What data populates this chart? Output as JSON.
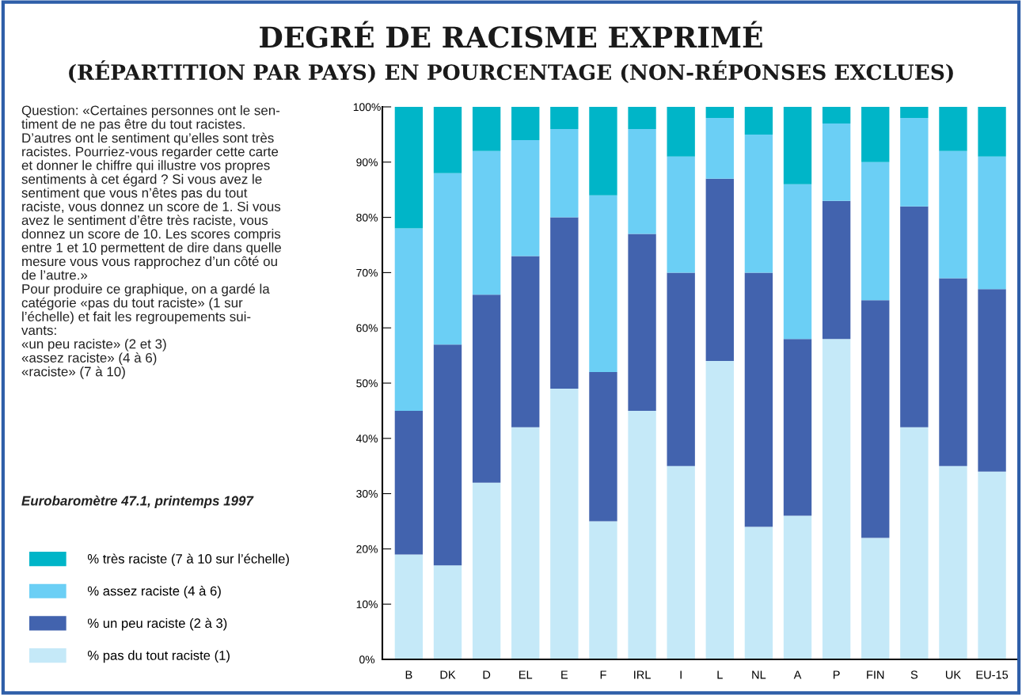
{
  "chart_data": {
    "type": "bar",
    "stacked": true,
    "title": "DEGRÉ DE RACISME EXPRIMÉ",
    "subtitle": "(RÉPARTITION PAR PAYS) EN POURCENTAGE (NON-RÉPONSES EXCLUES)",
    "categories": [
      "B",
      "DK",
      "D",
      "EL",
      "E",
      "F",
      "IRL",
      "I",
      "L",
      "NL",
      "A",
      "P",
      "FIN",
      "S",
      "UK",
      "EU-15"
    ],
    "series": [
      {
        "name": "% pas du tout raciste (1)",
        "color": "#c5e9f8",
        "values": [
          19,
          17,
          32,
          42,
          49,
          25,
          45,
          35,
          54,
          24,
          26,
          58,
          22,
          42,
          35,
          34
        ]
      },
      {
        "name": "% un peu raciste (2 à 3)",
        "color": "#4263ae",
        "values": [
          26,
          40,
          34,
          31,
          31,
          27,
          32,
          35,
          33,
          46,
          32,
          25,
          43,
          40,
          34,
          33
        ]
      },
      {
        "name": "% assez raciste (4 à 6)",
        "color": "#6bcff5",
        "values": [
          33,
          31,
          26,
          21,
          16,
          32,
          19,
          21,
          11,
          25,
          28,
          14,
          25,
          16,
          23,
          24
        ]
      },
      {
        "name": "% très raciste (7 à 10 sur l’échelle)",
        "color": "#00b5c8",
        "values": [
          22,
          12,
          8,
          6,
          4,
          16,
          4,
          9,
          2,
          5,
          14,
          3,
          10,
          2,
          8,
          9
        ]
      }
    ],
    "ylim": [
      0,
      100
    ],
    "yticks": [
      {
        "value": 0,
        "label": "0%"
      },
      {
        "value": 10,
        "label": "10%"
      },
      {
        "value": 20,
        "label": "20%"
      },
      {
        "value": 30,
        "label": "30%"
      },
      {
        "value": 40,
        "label": "40%"
      },
      {
        "value": 50,
        "label": "50%"
      },
      {
        "value": 60,
        "label": "60%"
      },
      {
        "value": 70,
        "label": "70%"
      },
      {
        "value": 80,
        "label": "80%"
      },
      {
        "value": 90,
        "label": "90%"
      },
      {
        "value": 100,
        "label": "100%"
      }
    ],
    "grid": false,
    "legend": "left",
    "annotations": [
      "Question: «Certaines personnes ont le sen-\ntiment de ne pas être du tout racistes.\nD’autres ont le sentiment qu’elles sont très\nracistes. Pourriez-vous regarder cette carte\net donner le chiffre qui illustre vos propres\nsentiments à cet égard ? Si vous avez le\nsentiment que vous n’êtes pas du tout\nraciste, vous donnez un score de 1. Si vous\navez le sentiment d’être très raciste, vous\ndonnez un score de 10. Les scores compris\nentre 1 et 10 permettent de dire dans quelle\nmesure vous vous rapprochez d’un côté ou\nde l’autre.»\nPour produire ce graphique, on a gardé la\ncatégorie «pas du tout raciste» (1 sur\nl’échelle) et fait les regroupements sui-\nvants:\n«un peu raciste» (2 et 3)\n«assez raciste» (4 à 6)\n«raciste» (7 à 10)",
      "Eurobaromètre 47.1, printemps 1997"
    ]
  }
}
